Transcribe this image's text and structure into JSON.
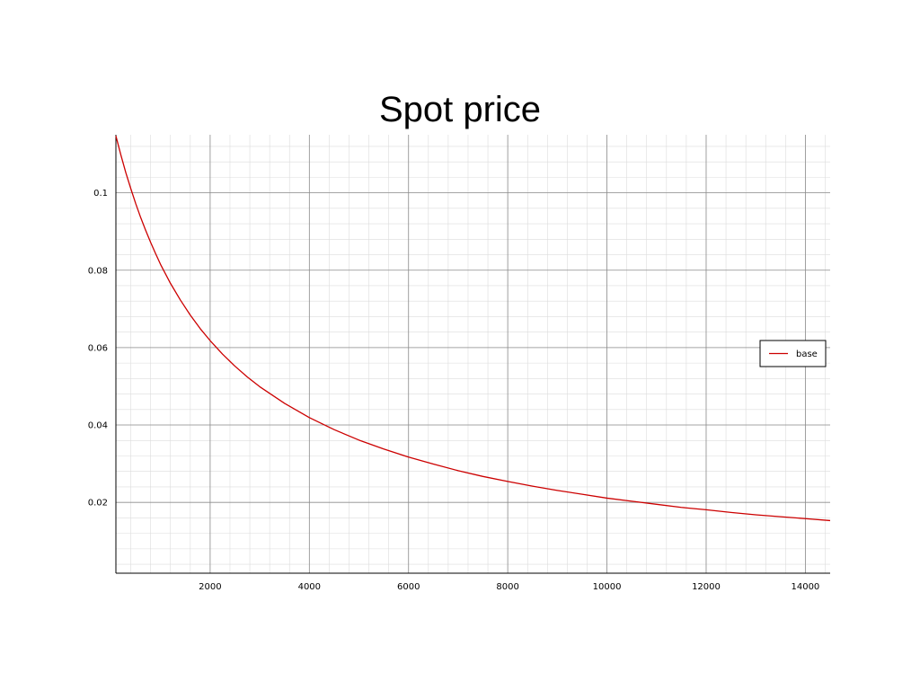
{
  "chart_data": {
    "type": "line",
    "title": "Spot price",
    "xlabel": "",
    "ylabel": "",
    "xlim": [
      100,
      14500
    ],
    "ylim": [
      0.0017,
      0.115
    ],
    "x_ticks": [
      2000,
      4000,
      6000,
      8000,
      10000,
      12000,
      14000
    ],
    "x_tick_labels": [
      "2000",
      "4000",
      "6000",
      "8000",
      "10000",
      "12000",
      "14000"
    ],
    "y_ticks": [
      0.02,
      0.04,
      0.06,
      0.08,
      0.1
    ],
    "y_tick_labels": [
      "0.02",
      "0.04",
      "0.06",
      "0.08",
      "0.1"
    ],
    "grid": true,
    "minor_grid": true,
    "legend_position": "right",
    "series": [
      {
        "name": "base",
        "color": "#cc0000",
        "x": [
          100,
          200,
          300,
          400,
          500,
          600,
          700,
          800,
          900,
          1000,
          1200,
          1400,
          1600,
          1800,
          2000,
          2250,
          2500,
          2750,
          3000,
          3500,
          4000,
          4500,
          5000,
          5500,
          6000,
          6500,
          7000,
          7500,
          8000,
          8500,
          9000,
          9500,
          10000,
          10500,
          11000,
          11500,
          12000,
          12500,
          13000,
          13500,
          14000,
          14500
        ],
        "y": [
          0.1147,
          0.1098,
          0.1052,
          0.1011,
          0.0972,
          0.0936,
          0.0903,
          0.0872,
          0.0843,
          0.0815,
          0.0766,
          0.0723,
          0.0684,
          0.0649,
          0.0618,
          0.0583,
          0.0552,
          0.0524,
          0.0499,
          0.0456,
          0.0419,
          0.0388,
          0.0361,
          0.0338,
          0.0317,
          0.0299,
          0.0282,
          0.0267,
          0.0254,
          0.0242,
          0.0231,
          0.0221,
          0.0211,
          0.0203,
          0.0195,
          0.0187,
          0.0181,
          0.0174,
          0.0168,
          0.0163,
          0.0158,
          0.0153
        ]
      }
    ]
  }
}
